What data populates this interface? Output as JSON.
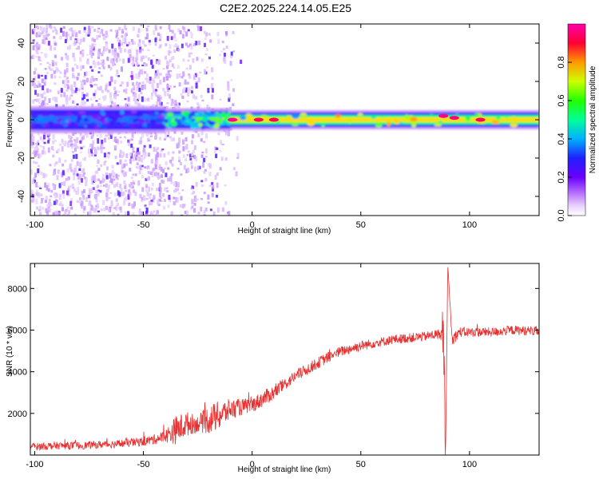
{
  "title": "C2E2.2025.224.14.05.E25",
  "colors": {
    "background": "#ffffff",
    "snr_line": "#e83030",
    "spectrogram_bg": "#ffffff"
  },
  "chart_data": [
    {
      "type": "heatmap",
      "xlabel": "Height of straight line (km)",
      "ylabel": "Frequency (Hz)",
      "xlim": [
        -102,
        132
      ],
      "ylim": [
        -50,
        50
      ],
      "xticks": [
        -100,
        -50,
        0,
        50,
        100
      ],
      "yticks": [
        -40,
        -20,
        0,
        20,
        40
      ],
      "grid": false,
      "colorbar": {
        "label": "Normalized spectral amplitude",
        "lim": [
          0,
          1
        ],
        "ticks": [
          0.0,
          0.2,
          0.4,
          0.6,
          0.8
        ],
        "colormap": [
          "#ffffff",
          "#d7b3ff",
          "#7a1bff",
          "#2a20ff",
          "#00ccff",
          "#00ff66",
          "#aaff00",
          "#ffdd00",
          "#ff6600",
          "#ff0055",
          "#ff00bb"
        ]
      },
      "band": {
        "center_hz": 0,
        "segments": [
          {
            "x": [
              -102,
              -40
            ],
            "width_hz": 7,
            "peak": 0.35,
            "noise": "scattered speckle over full frequency range"
          },
          {
            "x": [
              -40,
              -10
            ],
            "width_hz": 6,
            "peak": 0.55
          },
          {
            "x": [
              -10,
              132
            ],
            "width_hz": 5,
            "peak": 0.7
          }
        ],
        "hot_spots": [
          {
            "x": -9,
            "y": 0,
            "value": 0.95
          },
          {
            "x": 3,
            "y": 0,
            "value": 0.9
          },
          {
            "x": 10,
            "y": 0,
            "value": 0.9
          },
          {
            "x": 88,
            "y": 2,
            "value": 0.95
          },
          {
            "x": 93,
            "y": 1,
            "value": 0.95
          },
          {
            "x": 105,
            "y": 0,
            "value": 0.9
          }
        ]
      }
    },
    {
      "type": "line",
      "xlabel": "Height of straight line (km)",
      "ylabel": "SNR (10 * v/v)",
      "xlim": [
        -102,
        132
      ],
      "ylim": [
        0,
        9200
      ],
      "xticks": [
        -100,
        -50,
        0,
        50,
        100
      ],
      "yticks": [
        2000,
        4000,
        6000,
        8000
      ],
      "grid": false,
      "series": [
        {
          "color": "#e83030",
          "x": [
            -102,
            -90,
            -80,
            -70,
            -60,
            -50,
            -45,
            -40,
            -35,
            -30,
            -25,
            -20,
            -15,
            -10,
            -5,
            0,
            5,
            10,
            15,
            20,
            25,
            30,
            35,
            40,
            45,
            50,
            55,
            60,
            65,
            70,
            75,
            80,
            85,
            88,
            89,
            90,
            92,
            95,
            100,
            110,
            120,
            132
          ],
          "values": [
            400,
            450,
            450,
            500,
            550,
            650,
            750,
            900,
            1200,
            1500,
            1500,
            1700,
            1900,
            2200,
            2300,
            2400,
            2700,
            3000,
            3400,
            3800,
            4100,
            4400,
            4700,
            4950,
            5100,
            5250,
            5350,
            5450,
            5550,
            5600,
            5650,
            5700,
            5800,
            5800,
            200,
            9100,
            5500,
            5900,
            5900,
            5900,
            6000,
            5950
          ],
          "noise": [
            180,
            180,
            180,
            180,
            200,
            220,
            250,
            300,
            700,
            600,
            400,
            700,
            700,
            500,
            400,
            350,
            400,
            350,
            300,
            300,
            280,
            280,
            260,
            250,
            250,
            250,
            230,
            230,
            230,
            230,
            230,
            230,
            250,
            300,
            0,
            0,
            300,
            250,
            230,
            230,
            230,
            230
          ]
        }
      ]
    }
  ]
}
